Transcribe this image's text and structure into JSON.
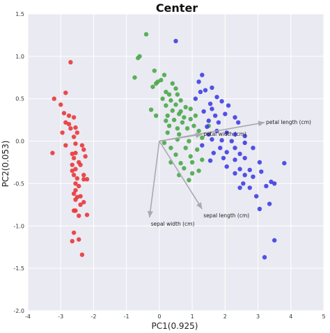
{
  "chart_data": {
    "type": "scatter",
    "title": "Center",
    "xlabel": "PC1(0.925)",
    "ylabel": "PC2(0.053)",
    "xlim": [
      -4,
      5
    ],
    "ylim": [
      -2.0,
      1.5
    ],
    "x_ticks": [
      -4,
      -3,
      -2,
      -1,
      0,
      1,
      2,
      3,
      4,
      5
    ],
    "y_ticks": [
      -2.0,
      -1.5,
      -1.0,
      -0.5,
      0.0,
      0.5,
      1.0,
      1.5
    ],
    "grid": true,
    "background": "#eaeaf2",
    "series": [
      {
        "color": "#e8393a",
        "points": [
          [
            -2.7,
            0.93
          ],
          [
            -2.6,
            0.05
          ],
          [
            -2.85,
            0.57
          ],
          [
            -3.2,
            0.5
          ],
          [
            -3.0,
            0.43
          ],
          [
            -2.9,
            0.33
          ],
          [
            -2.75,
            0.3
          ],
          [
            -2.85,
            0.22
          ],
          [
            -2.75,
            0.2
          ],
          [
            -2.7,
            0.15
          ],
          [
            -2.6,
            0.28
          ],
          [
            -2.55,
            0.16
          ],
          [
            -2.95,
            0.1
          ],
          [
            -2.5,
            0.1
          ],
          [
            -2.55,
            -0.03
          ],
          [
            -2.85,
            -0.05
          ],
          [
            -3.25,
            -0.14
          ],
          [
            -2.35,
            -0.05
          ],
          [
            -2.55,
            -0.14
          ],
          [
            -2.3,
            -0.1
          ],
          [
            -2.25,
            -0.18
          ],
          [
            -2.65,
            -0.15
          ],
          [
            -2.6,
            -0.2
          ],
          [
            -2.45,
            -0.25
          ],
          [
            -2.4,
            -0.28
          ],
          [
            -2.65,
            -0.28
          ],
          [
            -2.55,
            -0.33
          ],
          [
            -2.65,
            -0.35
          ],
          [
            -2.3,
            -0.4
          ],
          [
            -2.6,
            -0.4
          ],
          [
            -2.5,
            -0.44
          ],
          [
            -2.2,
            -0.45
          ],
          [
            -2.3,
            -0.45
          ],
          [
            -2.55,
            -0.5
          ],
          [
            -2.45,
            -0.53
          ],
          [
            -2.55,
            -0.58
          ],
          [
            -2.6,
            -0.62
          ],
          [
            -2.4,
            -0.65
          ],
          [
            -2.5,
            -0.66
          ],
          [
            -2.55,
            -0.69
          ],
          [
            -2.3,
            -0.72
          ],
          [
            -2.4,
            -0.75
          ],
          [
            -2.55,
            -0.82
          ],
          [
            -2.6,
            -0.82
          ],
          [
            -2.2,
            -0.87
          ],
          [
            -2.6,
            -1.08
          ],
          [
            -2.65,
            -1.18
          ],
          [
            -2.45,
            -1.16
          ],
          [
            -2.35,
            -1.34
          ],
          [
            -2.45,
            -0.88
          ]
        ]
      },
      {
        "color": "#4aa94a",
        "points": [
          [
            -0.4,
            1.26
          ],
          [
            -0.6,
            1.0
          ],
          [
            -0.65,
            0.98
          ],
          [
            -0.75,
            0.75
          ],
          [
            -0.15,
            0.83
          ],
          [
            -0.1,
            0.68
          ],
          [
            -0.2,
            0.64
          ],
          [
            -0.05,
            0.7
          ],
          [
            0.05,
            0.72
          ],
          [
            0.15,
            0.78
          ],
          [
            0.4,
            0.68
          ],
          [
            0.5,
            0.62
          ],
          [
            0.2,
            0.58
          ],
          [
            0.3,
            0.55
          ],
          [
            0.55,
            0.55
          ],
          [
            0.1,
            0.5
          ],
          [
            0.35,
            0.48
          ],
          [
            0.65,
            0.48
          ],
          [
            0.2,
            0.42
          ],
          [
            0.5,
            0.43
          ],
          [
            0.8,
            0.4
          ],
          [
            0.95,
            0.38
          ],
          [
            0.4,
            0.36
          ],
          [
            0.65,
            0.35
          ],
          [
            -0.25,
            0.37
          ],
          [
            -0.1,
            0.3
          ],
          [
            0.25,
            0.3
          ],
          [
            0.6,
            0.32
          ],
          [
            0.75,
            0.28
          ],
          [
            0.2,
            0.24
          ],
          [
            0.45,
            0.25
          ],
          [
            0.7,
            0.22
          ],
          [
            0.95,
            0.26
          ],
          [
            1.1,
            0.3
          ],
          [
            0.3,
            0.18
          ],
          [
            0.55,
            0.15
          ],
          [
            0.85,
            0.15
          ],
          [
            1.05,
            0.18
          ],
          [
            0.25,
            0.1
          ],
          [
            0.6,
            0.08
          ],
          [
            1.2,
            0.12
          ],
          [
            0.15,
            -0.02
          ],
          [
            0.55,
            0.02
          ],
          [
            0.9,
            0.0
          ],
          [
            1.3,
            0.04
          ],
          [
            0.35,
            -0.08
          ],
          [
            0.8,
            -0.08
          ],
          [
            1.15,
            -0.1
          ],
          [
            0.5,
            -0.16
          ],
          [
            0.95,
            -0.18
          ],
          [
            0.35,
            -0.25
          ],
          [
            0.65,
            -0.26
          ],
          [
            1.0,
            -0.25
          ],
          [
            0.75,
            -0.32
          ],
          [
            0.6,
            -0.4
          ],
          [
            1.0,
            -0.38
          ],
          [
            0.9,
            -0.46
          ],
          [
            1.2,
            -0.35
          ],
          [
            1.3,
            -0.22
          ],
          [
            1.5,
            0.18
          ]
        ]
      },
      {
        "color": "#3f3fe3",
        "points": [
          [
            0.5,
            1.18
          ],
          [
            1.3,
            0.78
          ],
          [
            1.2,
            0.7
          ],
          [
            1.6,
            0.63
          ],
          [
            1.25,
            0.58
          ],
          [
            1.4,
            0.6
          ],
          [
            1.75,
            0.52
          ],
          [
            1.1,
            0.5
          ],
          [
            1.55,
            0.44
          ],
          [
            1.9,
            0.47
          ],
          [
            1.6,
            0.38
          ],
          [
            2.1,
            0.42
          ],
          [
            1.35,
            0.35
          ],
          [
            1.7,
            0.3
          ],
          [
            2.0,
            0.32
          ],
          [
            2.3,
            0.28
          ],
          [
            1.5,
            0.24
          ],
          [
            1.8,
            0.22
          ],
          [
            2.4,
            0.22
          ],
          [
            1.45,
            0.17
          ],
          [
            1.75,
            0.12
          ],
          [
            2.05,
            0.1
          ],
          [
            2.3,
            0.08
          ],
          [
            2.6,
            0.06
          ],
          [
            1.5,
            0.08
          ],
          [
            1.6,
            0.02
          ],
          [
            1.9,
            0.01
          ],
          [
            2.2,
            0.0
          ],
          [
            2.6,
            -0.02
          ],
          [
            1.3,
            -0.05
          ],
          [
            1.85,
            -0.08
          ],
          [
            2.3,
            -0.08
          ],
          [
            2.85,
            -0.08
          ],
          [
            1.65,
            -0.14
          ],
          [
            2.05,
            -0.13
          ],
          [
            2.45,
            -0.15
          ],
          [
            1.95,
            -0.2
          ],
          [
            2.3,
            -0.22
          ],
          [
            2.6,
            -0.2
          ],
          [
            3.05,
            -0.25
          ],
          [
            1.55,
            -0.23
          ],
          [
            2.05,
            -0.3
          ],
          [
            2.45,
            -0.33
          ],
          [
            2.75,
            -0.34
          ],
          [
            3.1,
            -0.36
          ],
          [
            2.3,
            -0.38
          ],
          [
            2.6,
            -0.4
          ],
          [
            2.85,
            -0.42
          ],
          [
            2.55,
            -0.5
          ],
          [
            3.4,
            -0.48
          ],
          [
            3.8,
            -0.26
          ],
          [
            2.45,
            -0.55
          ],
          [
            2.75,
            -0.55
          ],
          [
            3.25,
            -0.53
          ],
          [
            3.5,
            -0.5
          ],
          [
            2.95,
            -0.65
          ],
          [
            3.35,
            -0.74
          ],
          [
            3.05,
            -0.8
          ],
          [
            3.5,
            -1.17
          ],
          [
            3.2,
            -1.37
          ]
        ]
      }
    ],
    "loading_vectors": [
      {
        "label": "sepal length (cm)",
        "x": 1.3,
        "y": -0.8
      },
      {
        "label": "sepal width (cm)",
        "x": -0.3,
        "y": -0.9
      },
      {
        "label": "petal length (cm)",
        "x": 3.2,
        "y": 0.22
      },
      {
        "label": "petal width (cm)",
        "x": 1.3,
        "y": 0.08
      }
    ],
    "point_size": 3.2,
    "arrow_color": "#a9a9b0",
    "grid_color": "#ffffff"
  }
}
